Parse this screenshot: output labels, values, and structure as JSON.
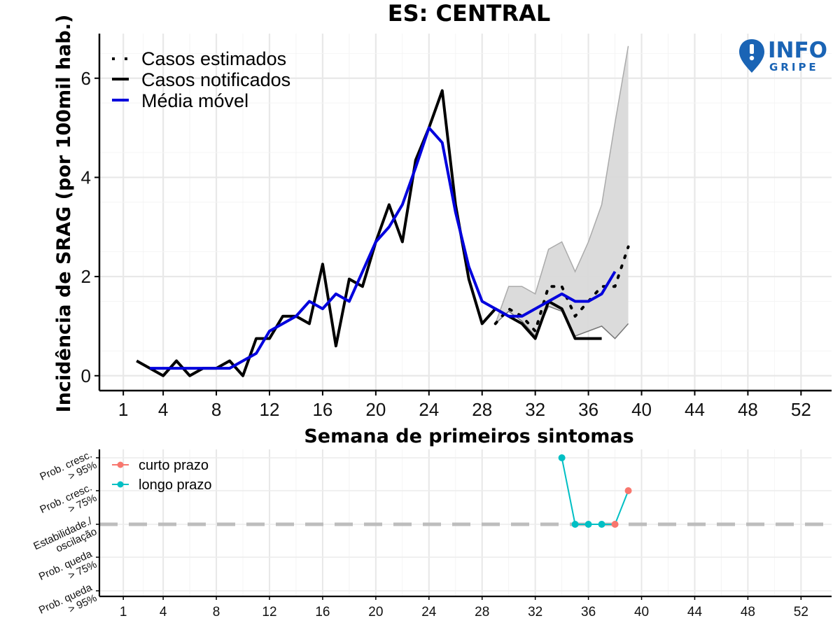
{
  "chart_data": [
    {
      "type": "line",
      "title": "ES: CENTRAL",
      "xlabel": "Semana de primeiros sintomas",
      "ylabel": "Incidência de SRAG (por 100mil hab.)",
      "xlim": [
        -0.8,
        54.3
      ],
      "ylim": [
        -0.3,
        6.9
      ],
      "x_ticks": [
        1,
        4,
        8,
        12,
        16,
        20,
        24,
        28,
        32,
        36,
        40,
        44,
        48,
        52
      ],
      "y_ticks": [
        0,
        2,
        4,
        6
      ],
      "grid": true,
      "legend_position": "top-left",
      "legend": [
        {
          "key": "estimated",
          "label": "Casos estimados",
          "style": "dotted",
          "color": "#000000"
        },
        {
          "key": "notified",
          "label": "Casos notificados",
          "style": "solid",
          "color": "#000000"
        },
        {
          "key": "moving_avg",
          "label": "Média móvel",
          "style": "solid",
          "color": "#0000dd"
        }
      ],
      "series": [
        {
          "name": "Casos notificados",
          "x": [
            2,
            3,
            4,
            5,
            6,
            7,
            8,
            9,
            10,
            11,
            12,
            13,
            14,
            15,
            16,
            17,
            18,
            19,
            20,
            21,
            22,
            23,
            24,
            25,
            26,
            27,
            28,
            29,
            30,
            31,
            32,
            33,
            34,
            35,
            36,
            37
          ],
          "values": [
            0.3,
            0.15,
            0,
            0.3,
            0,
            0.15,
            0.15,
            0.3,
            0,
            0.75,
            0.75,
            1.2,
            1.2,
            1.05,
            2.25,
            0.6,
            1.95,
            1.8,
            2.7,
            3.45,
            2.7,
            4.35,
            5.0,
            5.75,
            3.45,
            1.95,
            1.05,
            1.35,
            1.2,
            1.05,
            0.75,
            1.5,
            1.35,
            0.75,
            0.75,
            0.75
          ]
        },
        {
          "name": "Média móvel",
          "x": [
            3,
            4,
            5,
            6,
            7,
            8,
            9,
            10,
            11,
            12,
            13,
            14,
            15,
            16,
            17,
            18,
            19,
            20,
            21,
            22,
            23,
            24,
            25,
            26,
            27,
            28,
            29,
            30,
            31,
            32,
            33,
            34,
            35,
            36,
            37,
            38
          ],
          "values": [
            0.15,
            0.15,
            0.15,
            0.15,
            0.15,
            0.15,
            0.15,
            0.3,
            0.45,
            0.9,
            1.05,
            1.2,
            1.5,
            1.35,
            1.65,
            1.5,
            2.1,
            2.7,
            3.0,
            3.45,
            4.2,
            5.0,
            4.7,
            3.3,
            2.2,
            1.5,
            1.35,
            1.2,
            1.2,
            1.35,
            1.5,
            1.65,
            1.5,
            1.5,
            1.65,
            2.1
          ]
        },
        {
          "name": "Casos estimados",
          "x": [
            29,
            30,
            31,
            32,
            33,
            34,
            35,
            36,
            37,
            38,
            39
          ],
          "values": [
            1.05,
            1.35,
            1.2,
            0.9,
            1.8,
            1.8,
            1.2,
            1.5,
            1.8,
            1.8,
            2.6
          ]
        }
      ],
      "band": {
        "name": "Intervalo de confiança",
        "x": [
          29,
          30,
          31,
          32,
          33,
          34,
          35,
          36,
          37,
          38,
          39
        ],
        "lower": [
          1.05,
          1.3,
          1.1,
          0.8,
          1.4,
          1.3,
          0.8,
          0.9,
          1.0,
          0.75,
          1.05
        ],
        "upper": [
          1.05,
          1.8,
          1.8,
          1.65,
          2.55,
          2.7,
          2.1,
          2.7,
          3.45,
          5.1,
          6.65
        ]
      }
    },
    {
      "type": "line",
      "xlim": [
        -0.8,
        54.3
      ],
      "x_ticks": [
        1,
        4,
        8,
        12,
        16,
        20,
        24,
        28,
        32,
        36,
        40,
        44,
        48,
        52
      ],
      "y_categories": [
        "Prob. cresc. > 95%",
        "Prob. cresc. > 75%",
        "Estabilidade./ oscilação",
        "Prob. queda > 75%",
        "Prob. queda > 95%"
      ],
      "y_levels": [
        2,
        1,
        0,
        -1,
        -2
      ],
      "legend_position": "top-left",
      "legend": [
        {
          "key": "short",
          "label": "curto prazo",
          "color": "#f8766d"
        },
        {
          "key": "long",
          "label": "longo prazo",
          "color": "#00bfc4"
        }
      ],
      "series": [
        {
          "name": "longo prazo",
          "x": [
            34,
            35,
            36,
            37
          ],
          "values": [
            2,
            0,
            0,
            0
          ]
        },
        {
          "name": "curto prazo",
          "x": [
            38,
            39
          ],
          "values": [
            0,
            1
          ]
        }
      ]
    }
  ],
  "logo": {
    "top": "INFO",
    "bottom": "GRIPE",
    "color": "#1a64b5"
  }
}
